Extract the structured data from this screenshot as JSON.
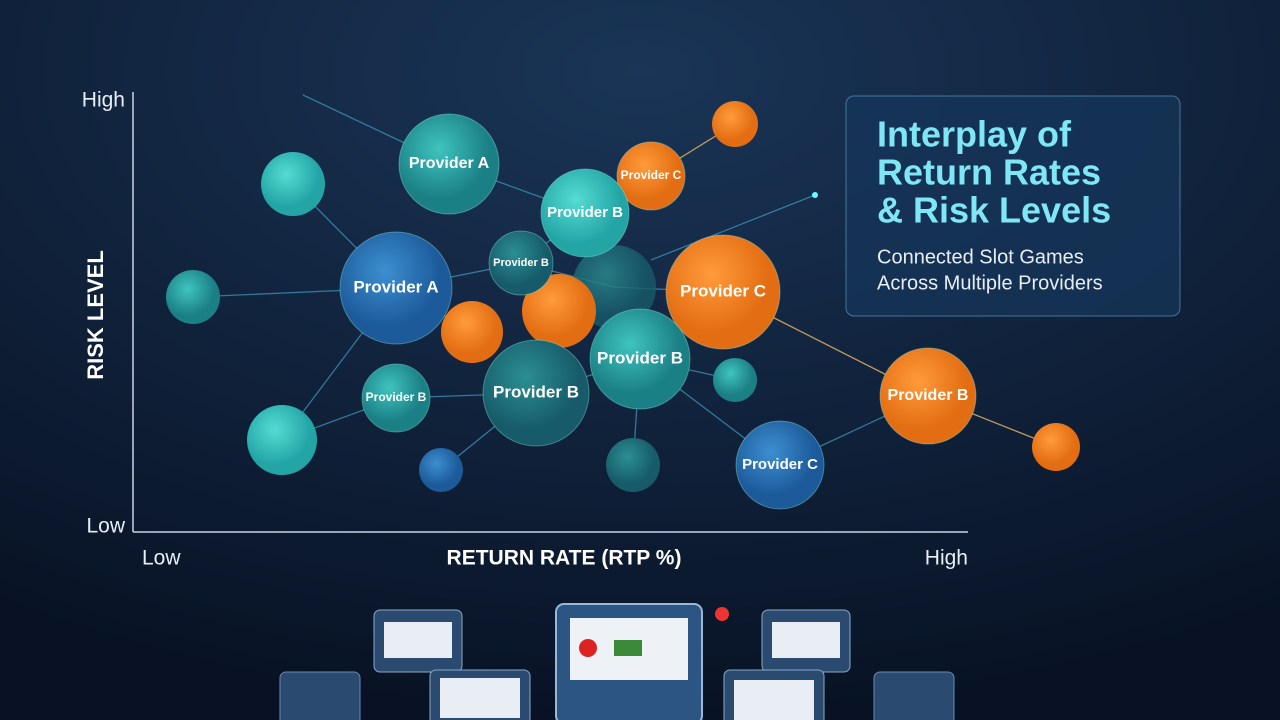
{
  "axes": {
    "y_high": "High",
    "y_low": "Low",
    "y_title": "RISK LEVEL",
    "x_low": "Low",
    "x_high": "High",
    "x_title": "RETURN RATE (RTP %)"
  },
  "panel": {
    "title_lines": [
      "Interplay of",
      "Return Rates",
      "& Risk Levels"
    ],
    "subtitle_lines": [
      "Connected Slot Games",
      "Across Multiple Providers"
    ]
  },
  "nodes": [
    {
      "label": "Provider A"
    },
    {
      "label": "Provider C"
    },
    {
      "label": "Provider B"
    },
    {
      "label": "Provider B"
    },
    {
      "label": "Provider A"
    },
    {
      "label": "Provider C"
    },
    {
      "label": "Provider B"
    },
    {
      "label": "Provider B"
    },
    {
      "label": "Provider B"
    },
    {
      "label": "Provider B"
    },
    {
      "label": "Provider C"
    }
  ]
}
